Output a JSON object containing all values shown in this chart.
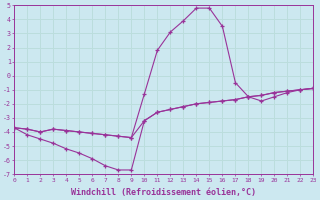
{
  "background_color": "#cce8f0",
  "grid_color": "#aadddd",
  "line_color": "#993399",
  "x_min": 0,
  "x_max": 23,
  "y_min": -7,
  "y_max": 5,
  "xlabel": "Windchill (Refroidissement éolien,°C)",
  "xlabel_fontsize": 6.0,
  "xtick_labels": [
    "0",
    "1",
    "2",
    "3",
    "4",
    "5",
    "6",
    "7",
    "8",
    "9",
    "10",
    "11",
    "12",
    "13",
    "14",
    "15",
    "16",
    "17",
    "18",
    "19",
    "20",
    "21",
    "22",
    "23"
  ],
  "ytick_labels": [
    "-7",
    "-6",
    "-5",
    "-4",
    "-3",
    "-2",
    "-1",
    "0",
    "1",
    "2",
    "3",
    "4",
    "5"
  ],
  "line1_x": [
    0,
    1,
    2,
    3,
    4,
    5,
    6,
    7,
    8,
    9,
    10,
    11,
    12,
    13,
    14,
    15,
    16,
    17,
    18,
    19,
    20,
    21,
    22,
    23
  ],
  "line1_y": [
    -3.7,
    -4.2,
    -4.5,
    -4.8,
    -5.2,
    -5.5,
    -5.9,
    -6.4,
    -6.7,
    -6.7,
    -3.2,
    -2.6,
    -2.4,
    -2.2,
    -2.0,
    -1.9,
    -1.8,
    -1.7,
    -1.5,
    -1.4,
    -1.2,
    -1.1,
    -1.0,
    -0.9
  ],
  "line2_x": [
    0,
    1,
    2,
    3,
    4,
    5,
    6,
    7,
    8,
    9,
    10,
    11,
    12,
    13,
    14,
    15,
    16,
    17,
    18,
    19,
    20,
    21,
    22,
    23
  ],
  "line2_y": [
    -3.7,
    -3.8,
    -4.0,
    -3.8,
    -3.9,
    -4.0,
    -4.1,
    -4.2,
    -4.3,
    -4.4,
    -3.2,
    -2.6,
    -2.4,
    -2.2,
    -2.0,
    -1.9,
    -1.8,
    -1.7,
    -1.5,
    -1.4,
    -1.2,
    -1.1,
    -1.0,
    -0.9
  ],
  "line3_x": [
    0,
    1,
    2,
    3,
    4,
    5,
    6,
    7,
    8,
    9,
    10,
    11,
    12,
    13,
    14,
    15,
    16,
    17,
    18,
    19,
    20,
    21,
    22,
    23
  ],
  "line3_y": [
    -3.7,
    -3.8,
    -4.0,
    -3.8,
    -3.9,
    -4.0,
    -4.1,
    -4.2,
    -4.3,
    -4.4,
    -1.3,
    1.8,
    3.1,
    3.9,
    4.8,
    4.8,
    3.5,
    -0.5,
    -1.5,
    -1.8,
    -1.5,
    -1.2,
    -1.0,
    -0.9
  ]
}
